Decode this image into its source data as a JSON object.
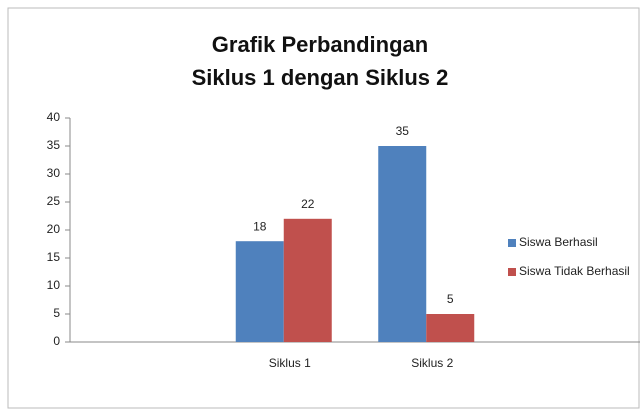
{
  "chart_data": {
    "type": "bar",
    "title": "Grafik Perbandingan",
    "subtitle": "Siklus 1 dengan Siklus 2",
    "categories": [
      null,
      "Siklus 1",
      "Siklus 2",
      null
    ],
    "series": [
      {
        "name": "Siswa Berhasil",
        "color": "#4f81bd",
        "values": [
          null,
          18,
          35,
          null
        ]
      },
      {
        "name": "Siswa Tidak Berhasil",
        "color": "#c0504d",
        "values": [
          null,
          22,
          5,
          null
        ]
      }
    ],
    "ylim": [
      0,
      40
    ],
    "yticks": [
      0,
      5,
      10,
      15,
      20,
      25,
      30,
      35,
      40
    ],
    "legend": "right"
  }
}
